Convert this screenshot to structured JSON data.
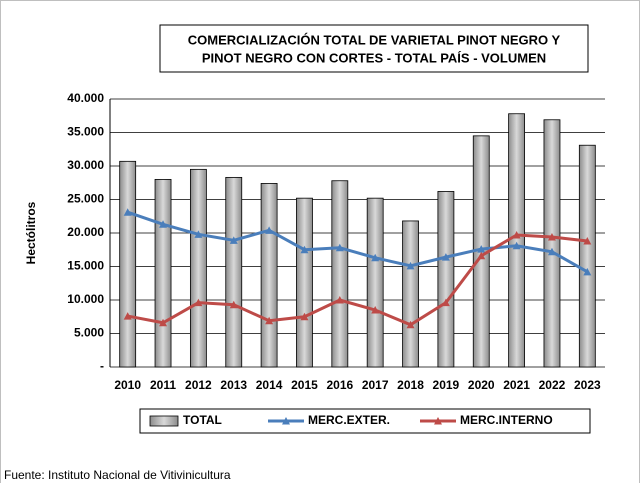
{
  "chart_data": {
    "type": "bar_line",
    "title": [
      "COMERCIALIZACIÓN TOTAL DE VARIETAL PINOT NEGRO Y",
      "PINOT NEGRO CON CORTES - TOTAL PAÍS - VOLUMEN"
    ],
    "y_label": "Hectólitros",
    "source": "Fuente: Instituto Nacional de Vitivinicultura",
    "categories": [
      "2010",
      "2011",
      "2012",
      "2013",
      "2014",
      "2015",
      "2016",
      "2017",
      "2018",
      "2019",
      "2020",
      "2021",
      "2022",
      "2023"
    ],
    "series": [
      {
        "name": "TOTAL",
        "type": "bar",
        "color": "#c0c0c0",
        "values": [
          30700,
          28000,
          29500,
          28300,
          27400,
          25200,
          27800,
          25200,
          21800,
          26200,
          34500,
          37800,
          36900,
          33100
        ]
      },
      {
        "name": "MERC.EXTER.",
        "type": "line",
        "color": "#4a7ebb",
        "values": [
          23100,
          21300,
          19800,
          18900,
          20400,
          17500,
          17800,
          16300,
          15100,
          16400,
          17600,
          18100,
          17200,
          14200
        ]
      },
      {
        "name": "MERC.INTERNO",
        "type": "line",
        "color": "#be4b48",
        "values": [
          7600,
          6600,
          9600,
          9300,
          6900,
          7500,
          10000,
          8500,
          6300,
          9600,
          16600,
          19700,
          19400,
          18800
        ]
      }
    ],
    "ylim": [
      0,
      40000
    ],
    "yticks": [
      {
        "value": 0,
        "label": "-"
      },
      {
        "value": 5000,
        "label": "5.000"
      },
      {
        "value": 10000,
        "label": "10.000"
      },
      {
        "value": 15000,
        "label": "15.000"
      },
      {
        "value": 20000,
        "label": "20.000"
      },
      {
        "value": 25000,
        "label": "25.000"
      },
      {
        "value": 30000,
        "label": "30.000"
      },
      {
        "value": 35000,
        "label": "35.000"
      },
      {
        "value": 40000,
        "label": "40.000"
      }
    ],
    "grid": true,
    "legend": "bottom"
  }
}
